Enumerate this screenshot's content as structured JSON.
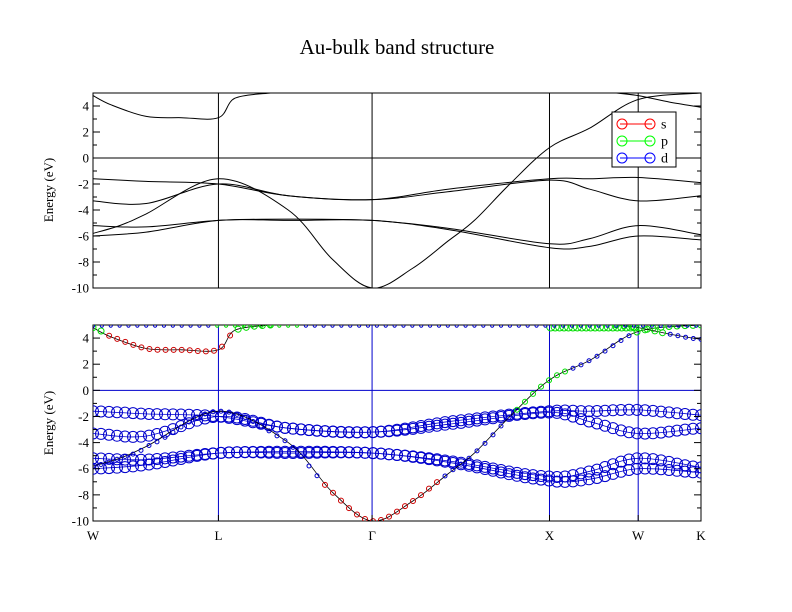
{
  "title": "Au-bulk band structure",
  "chart_data": [
    {
      "type": "line",
      "panel": "top",
      "ylabel": "Energy (eV)",
      "ylim": [
        -10,
        5
      ],
      "yticks": [
        4,
        2,
        0,
        -2,
        -4,
        -6,
        -8,
        -10
      ],
      "kpoints": [
        {
          "label": "W",
          "x": 0
        },
        {
          "label": "L",
          "x": 0.707
        },
        {
          "label": "Γ",
          "x": 1.573
        },
        {
          "label": "X",
          "x": 2.573
        },
        {
          "label": "W",
          "x": 3.073
        },
        {
          "label": "K",
          "x": 3.427
        }
      ],
      "xlim": [
        0,
        3.427
      ],
      "fermi_level": 0,
      "bands": [
        {
          "x": [
            0,
            0.3,
            0.707,
            1.1,
            1.573,
            2.0,
            2.573,
            2.8,
            3.073,
            3.427
          ],
          "y": [
            -6.0,
            -5.7,
            -4.8,
            -4.8,
            -4.8,
            -5.5,
            -6.9,
            -6.8,
            -6.0,
            -6.3
          ]
        },
        {
          "x": [
            0,
            0.3,
            0.707,
            1.1,
            1.573,
            2.0,
            2.573,
            2.8,
            3.073,
            3.427
          ],
          "y": [
            -5.2,
            -5.3,
            -4.8,
            -4.7,
            -4.8,
            -5.4,
            -6.6,
            -6.2,
            -5.2,
            -5.9
          ]
        },
        {
          "x": [
            0,
            0.3,
            0.707,
            1.1,
            1.573,
            2.0,
            2.573,
            2.8,
            3.073,
            3.427
          ],
          "y": [
            -3.3,
            -3.5,
            -2.0,
            -2.9,
            -3.2,
            -2.6,
            -1.7,
            -2.4,
            -3.3,
            -2.9
          ]
        },
        {
          "x": [
            0,
            0.3,
            0.707,
            1.1,
            1.573,
            2.0,
            2.573,
            2.8,
            3.073,
            3.427
          ],
          "y": [
            -1.6,
            -1.8,
            -2.0,
            -2.9,
            -3.2,
            -2.4,
            -1.6,
            -1.6,
            -1.5,
            -1.9
          ]
        },
        {
          "x": [
            0,
            0.15,
            0.3,
            0.707,
            1.1,
            1.35,
            1.573,
            1.8,
            2.0,
            2.15,
            2.35,
            2.573,
            2.8,
            3.073,
            3.427
          ],
          "y": [
            -5.8,
            -5.2,
            -4.3,
            -1.6,
            -4.0,
            -7.8,
            -10.0,
            -8.5,
            -6.4,
            -4.8,
            -2.0,
            0.8,
            2.3,
            4.5,
            5.0
          ]
        },
        {
          "x": [
            0,
            0.1,
            0.3,
            0.5,
            0.707,
            0.8,
            1.0
          ],
          "y": [
            4.8,
            4.1,
            3.2,
            3.1,
            3.1,
            4.6,
            5.0
          ]
        },
        {
          "x": [
            2.95,
            3.073,
            3.25,
            3.427
          ],
          "y": [
            5.0,
            4.8,
            4.3,
            3.9
          ]
        }
      ],
      "legend": {
        "placement": "top-right",
        "entries": [
          {
            "name": "s",
            "color": "#ff0000"
          },
          {
            "name": "p",
            "color": "#00ff00"
          },
          {
            "name": "d",
            "color": "#0000ff"
          }
        ]
      }
    },
    {
      "type": "scatter",
      "panel": "bottom",
      "description_of_marks": "fat-band projections",
      "ylabel": "Energy (eV)",
      "ylim": [
        -10,
        5
      ],
      "yticks": [
        4,
        2,
        0,
        -2,
        -4,
        -6,
        -8,
        -10
      ],
      "xlim": [
        0,
        3.427
      ],
      "fermi_level": 0,
      "colors": {
        "s": "#cc0000",
        "p": "#00dd00",
        "d": "#0000cc",
        "grid": "#0000cc"
      }
    }
  ]
}
